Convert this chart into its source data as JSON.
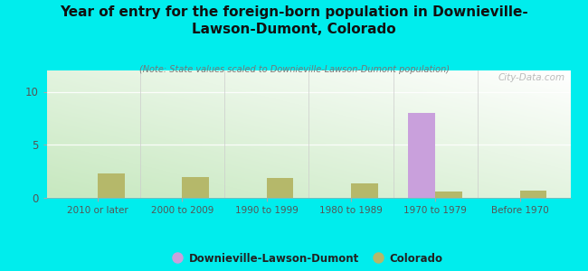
{
  "title": "Year of entry for the foreign-born population in Downieville-\nLawson-Dumont, Colorado",
  "subtitle": "(Note: State values scaled to Downieville-Lawson-Dumont population)",
  "categories": [
    "2010 or later",
    "2000 to 2009",
    "1990 to 1999",
    "1980 to 1989",
    "1970 to 1979",
    "Before 1970"
  ],
  "downieville_values": [
    0,
    0,
    0,
    0,
    8.0,
    0
  ],
  "colorado_values": [
    2.3,
    2.0,
    1.9,
    1.4,
    0.6,
    0.7
  ],
  "downieville_color": "#c9a0dc",
  "colorado_color": "#b5b86a",
  "background_color": "#00eded",
  "plot_bg_color_topleft": "#ffffff",
  "plot_bg_color_bottomright": "#c8e6c0",
  "ylim": [
    0,
    12
  ],
  "yticks": [
    0,
    5,
    10
  ],
  "bar_width": 0.32,
  "legend_labels": [
    "Downieville-Lawson-Dumont",
    "Colorado"
  ],
  "watermark": "City-Data.com"
}
